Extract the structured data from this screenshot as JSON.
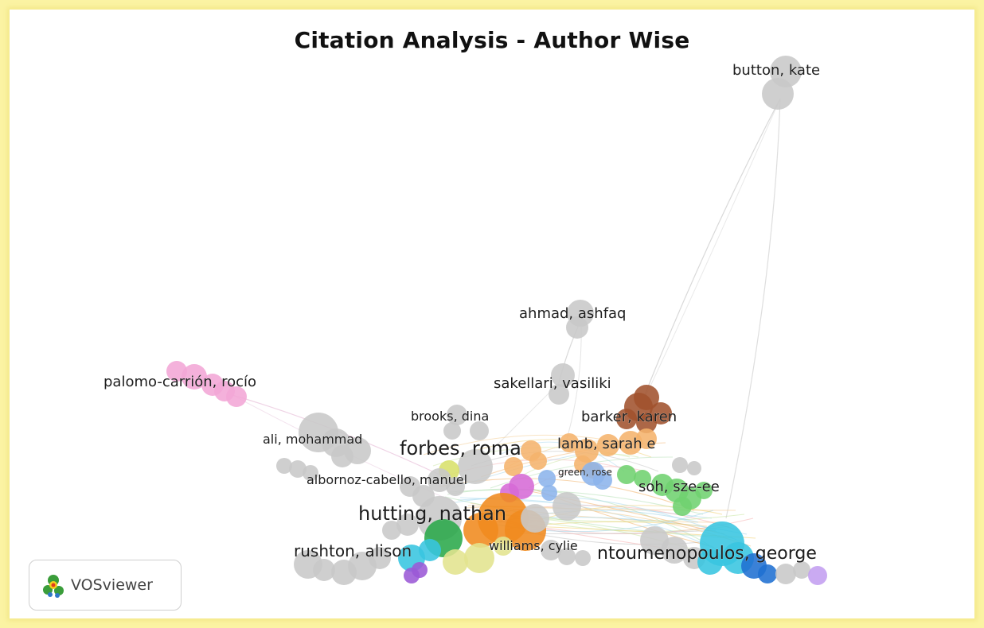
{
  "title": "Citation Analysis - Author Wise",
  "badge": {
    "text": "VOSviewer",
    "icon": "vosviewer-logo-icon"
  },
  "colors": {
    "frame_border": "#fbf3a3",
    "gray_cluster": "#c8c8c8",
    "pink_cluster": "#f3a6d6",
    "brown_cluster": "#a0522d",
    "orange_cluster": "#f08a1e",
    "green_cluster": "#6fd16f",
    "blue_cluster": "#1f6fd1",
    "cyan_cluster": "#38c5e0"
  },
  "labels": [
    {
      "id": "button-kate",
      "text": "button, kate"
    },
    {
      "id": "ahmad-ashfaq",
      "text": "ahmad, ashfaq"
    },
    {
      "id": "palomo-carrion-rocio",
      "text": "palomo-carrión, rocío"
    },
    {
      "id": "sakellari-vasiliki",
      "text": "sakellari, vasiliki"
    },
    {
      "id": "brooks-dina",
      "text": "brooks, dina"
    },
    {
      "id": "barker-karen",
      "text": "barker, karen"
    },
    {
      "id": "ali-mohammad",
      "text": "ali, mohammad"
    },
    {
      "id": "forbes-roma",
      "text": "forbes, roma"
    },
    {
      "id": "lamb-sarah-e",
      "text": "lamb, sarah e"
    },
    {
      "id": "green-rose",
      "text": "green, rose"
    },
    {
      "id": "albornoz-cabello-manuel",
      "text": "albornoz-cabello, manuel"
    },
    {
      "id": "soh-sze-ee",
      "text": "soh, sze-ee"
    },
    {
      "id": "hutting-nathan",
      "text": "hutting, nathan"
    },
    {
      "id": "rushton-alison",
      "text": "rushton, alison"
    },
    {
      "id": "williams-cylie",
      "text": "williams, cylie"
    },
    {
      "id": "ntoumenopoulos-george",
      "text": "ntoumenopoulos, george"
    }
  ]
}
